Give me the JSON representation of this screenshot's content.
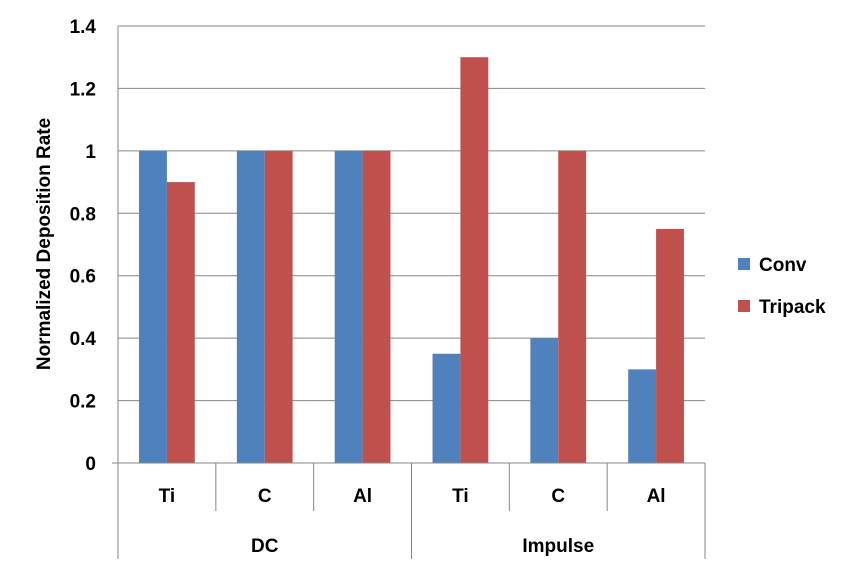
{
  "chart_data": {
    "type": "bar",
    "ylabel": "Normalized Deposition Rate",
    "xlabel": "",
    "ylim": [
      0,
      1.4
    ],
    "ytick_step": 0.2,
    "y_ticks": [
      "0",
      "0.2",
      "0.4",
      "0.6",
      "0.8",
      "1",
      "1.2",
      "1.4"
    ],
    "grid": true,
    "legend_position": "right",
    "groups": [
      {
        "label": "DC",
        "categories": [
          "Ti",
          "C",
          "Al"
        ]
      },
      {
        "label": "Impulse",
        "categories": [
          "Ti",
          "C",
          "Al"
        ]
      }
    ],
    "categories": [
      "Ti",
      "C",
      "Al",
      "Ti",
      "C",
      "Al"
    ],
    "series": [
      {
        "name": "Conv",
        "color": "#4f81bd",
        "values": [
          1.0,
          1.0,
          1.0,
          0.35,
          0.4,
          0.3
        ]
      },
      {
        "name": "Tripack",
        "color": "#c0504d",
        "values": [
          0.9,
          1.0,
          1.0,
          1.3,
          1.0,
          0.75
        ]
      }
    ]
  }
}
